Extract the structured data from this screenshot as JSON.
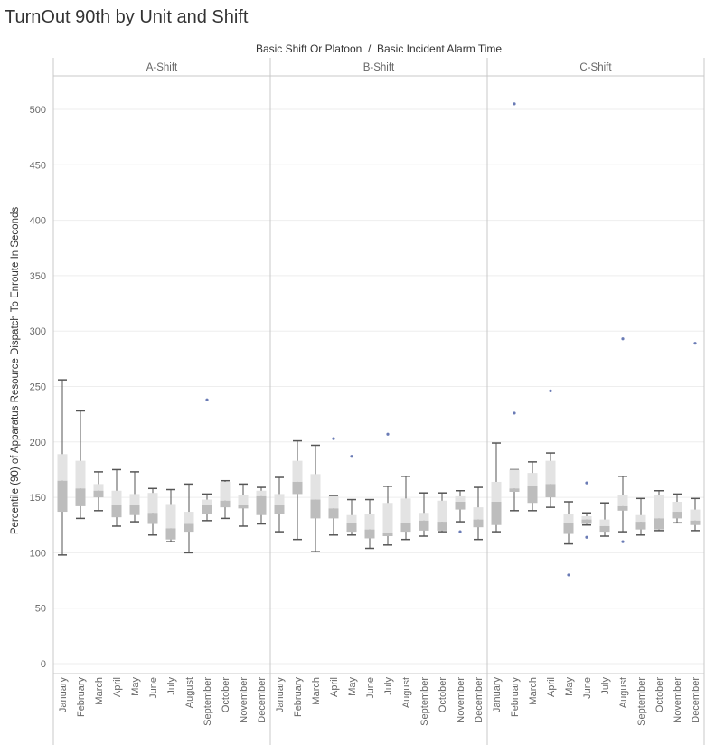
{
  "title": "TurnOut 90th by Unit and Shift",
  "chart_data": {
    "type": "box",
    "column_header": "Basic Shift Or Platoon  /  Basic Incident Alarm Time",
    "ylabel": "Percentile (90) of Apparatus Resource Dispatch To Enroute In Seconds",
    "ylim": [
      0,
      530
    ],
    "yticks": [
      0,
      50,
      100,
      150,
      200,
      250,
      300,
      350,
      400,
      450,
      500
    ],
    "grid": true,
    "panels": [
      "A-Shift",
      "B-Shift",
      "C-Shift"
    ],
    "categories": [
      "January",
      "February",
      "March",
      "April",
      "May",
      "June",
      "July",
      "August",
      "September",
      "October",
      "November",
      "December"
    ],
    "colors": {
      "box_upper": "#e3e3e3",
      "box_lower": "#bdbdbd",
      "whisker": "#555555",
      "outlier": "#6a7bb5",
      "grid": "#eeeeee",
      "axis": "#c8c8c8",
      "text": "#666666"
    },
    "series": [
      {
        "name": "A-Shift",
        "boxes": [
          {
            "min": 98,
            "q1": 137,
            "median": 165,
            "q3": 189,
            "max": 256,
            "outliers": []
          },
          {
            "min": 131,
            "q1": 142,
            "median": 158,
            "q3": 183,
            "max": 228,
            "outliers": []
          },
          {
            "min": 138,
            "q1": 150,
            "median": 156,
            "q3": 162,
            "max": 173,
            "outliers": []
          },
          {
            "min": 124,
            "q1": 132,
            "median": 143,
            "q3": 156,
            "max": 175,
            "outliers": []
          },
          {
            "min": 128,
            "q1": 134,
            "median": 143,
            "q3": 153,
            "max": 173,
            "outliers": []
          },
          {
            "min": 116,
            "q1": 126,
            "median": 136,
            "q3": 154,
            "max": 158,
            "outliers": []
          },
          {
            "min": 110,
            "q1": 112,
            "median": 122,
            "q3": 144,
            "max": 157,
            "outliers": []
          },
          {
            "min": 100,
            "q1": 119,
            "median": 126,
            "q3": 137,
            "max": 162,
            "outliers": []
          },
          {
            "min": 129,
            "q1": 135,
            "median": 143,
            "q3": 148,
            "max": 153,
            "outliers": [
              238
            ]
          },
          {
            "min": 131,
            "q1": 141,
            "median": 147,
            "q3": 164,
            "max": 165,
            "outliers": []
          },
          {
            "min": 124,
            "q1": 140,
            "median": 143,
            "q3": 152,
            "max": 162,
            "outliers": []
          },
          {
            "min": 126,
            "q1": 134,
            "median": 151,
            "q3": 156,
            "max": 159,
            "outliers": []
          }
        ]
      },
      {
        "name": "B-Shift",
        "boxes": [
          {
            "min": 119,
            "q1": 135,
            "median": 143,
            "q3": 153,
            "max": 168,
            "outliers": []
          },
          {
            "min": 112,
            "q1": 153,
            "median": 164,
            "q3": 183,
            "max": 201,
            "outliers": []
          },
          {
            "min": 101,
            "q1": 131,
            "median": 148,
            "q3": 171,
            "max": 197,
            "outliers": []
          },
          {
            "min": 116,
            "q1": 131,
            "median": 140,
            "q3": 151,
            "max": 151,
            "outliers": [
              203
            ]
          },
          {
            "min": 116,
            "q1": 119,
            "median": 127,
            "q3": 134,
            "max": 148,
            "outliers": [
              187
            ]
          },
          {
            "min": 104,
            "q1": 113,
            "median": 121,
            "q3": 135,
            "max": 148,
            "outliers": []
          },
          {
            "min": 107,
            "q1": 115,
            "median": 118,
            "q3": 145,
            "max": 160,
            "outliers": [
              207
            ]
          },
          {
            "min": 112,
            "q1": 119,
            "median": 127,
            "q3": 149,
            "max": 169,
            "outliers": []
          },
          {
            "min": 115,
            "q1": 120,
            "median": 129,
            "q3": 136,
            "max": 154,
            "outliers": []
          },
          {
            "min": 119,
            "q1": 120,
            "median": 128,
            "q3": 147,
            "max": 154,
            "outliers": []
          },
          {
            "min": 128,
            "q1": 139,
            "median": 146,
            "q3": 151,
            "max": 156,
            "outliers": [
              119
            ]
          },
          {
            "min": 112,
            "q1": 123,
            "median": 130,
            "q3": 141,
            "max": 159,
            "outliers": []
          }
        ]
      },
      {
        "name": "C-Shift",
        "boxes": [
          {
            "min": 119,
            "q1": 125,
            "median": 146,
            "q3": 164,
            "max": 199,
            "outliers": []
          },
          {
            "min": 138,
            "q1": 155,
            "median": 158,
            "q3": 175,
            "max": 175,
            "outliers": [
              226,
              505
            ]
          },
          {
            "min": 138,
            "q1": 145,
            "median": 160,
            "q3": 172,
            "max": 182,
            "outliers": []
          },
          {
            "min": 141,
            "q1": 150,
            "median": 162,
            "q3": 183,
            "max": 190,
            "outliers": [
              246
            ]
          },
          {
            "min": 108,
            "q1": 117,
            "median": 127,
            "q3": 135,
            "max": 146,
            "outliers": [
              80
            ]
          },
          {
            "min": 125,
            "q1": 126,
            "median": 130,
            "q3": 133,
            "max": 136,
            "outliers": [
              163,
              114
            ]
          },
          {
            "min": 115,
            "q1": 119,
            "median": 124,
            "q3": 130,
            "max": 145,
            "outliers": []
          },
          {
            "min": 119,
            "q1": 138,
            "median": 142,
            "q3": 152,
            "max": 169,
            "outliers": [
              293,
              110
            ]
          },
          {
            "min": 116,
            "q1": 121,
            "median": 128,
            "q3": 134,
            "max": 149,
            "outliers": []
          },
          {
            "min": 120,
            "q1": 121,
            "median": 131,
            "q3": 152,
            "max": 156,
            "outliers": []
          },
          {
            "min": 127,
            "q1": 131,
            "median": 137,
            "q3": 146,
            "max": 153,
            "outliers": []
          },
          {
            "min": 120,
            "q1": 125,
            "median": 129,
            "q3": 139,
            "max": 149,
            "outliers": [
              289
            ]
          }
        ]
      }
    ]
  }
}
